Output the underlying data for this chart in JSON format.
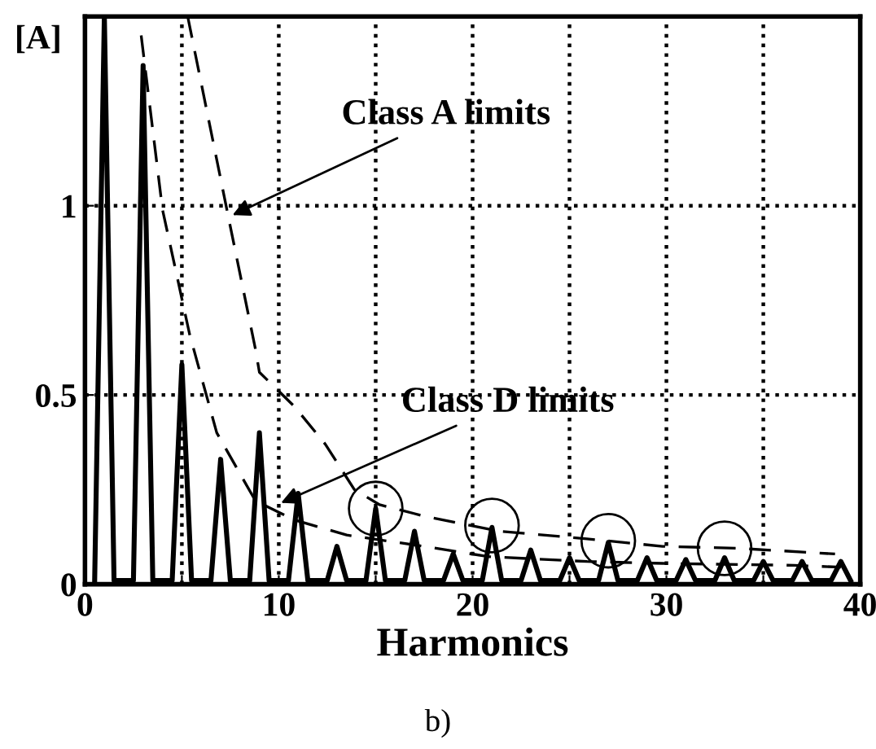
{
  "chart_data": {
    "type": "line",
    "xlabel": "Harmonics",
    "ylabel": "[A]",
    "xlim": [
      0,
      40
    ],
    "ylim": [
      0,
      1.5
    ],
    "xticks": [
      0,
      {
        "value": 5,
        "label": null
      },
      10,
      {
        "value": 15,
        "label": null
      },
      20,
      {
        "value": 25,
        "label": null
      },
      30,
      {
        "value": 35,
        "label": null
      },
      40
    ],
    "yticks": [
      0,
      0.5,
      1
    ],
    "grid": true,
    "marker": "none",
    "series": [
      {
        "color": "#000000",
        "line_style": "solid",
        "x": [
          0.5,
          1,
          1.5,
          2.5,
          3,
          3.5,
          4.5,
          5,
          5.5,
          6.5,
          7,
          7.5,
          8.5,
          9,
          9.5,
          10.5,
          11,
          11.5,
          12.5,
          13,
          13.5,
          14.5,
          15,
          15.5,
          16.5,
          17,
          17.5,
          18.5,
          19,
          19.5,
          20.5,
          21,
          21.5,
          22.5,
          23,
          23.5,
          24.5,
          25,
          25.5,
          26.5,
          27,
          27.5,
          28.5,
          29,
          29.5,
          30.5,
          31,
          31.5,
          32.5,
          33,
          33.5,
          34.5,
          35,
          35.5,
          36.5,
          37,
          37.5,
          38.5,
          39,
          39.5
        ],
        "values": [
          0.01,
          1.5,
          0.01,
          0.01,
          1.37,
          0.01,
          0.01,
          0.58,
          0.01,
          0.01,
          0.33,
          0.01,
          0.01,
          0.4,
          0.01,
          0.01,
          0.24,
          0.01,
          0.01,
          0.1,
          0.01,
          0.01,
          0.2,
          0.01,
          0.01,
          0.14,
          0.01,
          0.01,
          0.08,
          0.01,
          0.01,
          0.15,
          0.01,
          0.01,
          0.09,
          0.01,
          0.01,
          0.07,
          0.01,
          0.01,
          0.11,
          0.01,
          0.01,
          0.07,
          0.01,
          0.01,
          0.065,
          0.01,
          0.01,
          0.07,
          0.01,
          0.01,
          0.06,
          0.01,
          0.01,
          0.06,
          0.01,
          0.01,
          0.06,
          0.01
        ]
      },
      {
        "color": "#000000",
        "line_style": "dashed",
        "x": [
          5.3,
          7.4,
          8.8,
          9.0,
          10.8,
          12.4,
          13.9,
          15.2,
          17.5,
          21.4,
          25.9,
          29.8,
          33.7,
          38.7
        ],
        "values": [
          1.5,
          0.97,
          0.62,
          0.56,
          0.47,
          0.37,
          0.25,
          0.21,
          0.18,
          0.14,
          0.12,
          0.1,
          0.095,
          0.08
        ]
      },
      {
        "color": "#000000",
        "line_style": "dashed",
        "x": [
          2.9,
          4.0,
          5.4,
          6.8,
          8.8,
          10.8,
          13.5,
          17.5,
          20.8,
          25.9,
          29.8,
          36.6,
          39
        ],
        "values": [
          1.45,
          0.99,
          0.66,
          0.4,
          0.22,
          0.17,
          0.13,
          0.1,
          0.073,
          0.06,
          0.055,
          0.05,
          0.045
        ]
      },
      {
        "type": "scatter",
        "marker": "circle",
        "color": "#000000",
        "x": [
          15,
          21,
          27,
          33
        ],
        "values": [
          0.2,
          0.155,
          0.115,
          0.095
        ]
      }
    ],
    "annotations": [
      {
        "text": "Class A limits",
        "x": 7.4,
        "y": 0.97
      },
      {
        "text": "Class D limits",
        "x": 9.9,
        "y": 0.21
      },
      "b)"
    ]
  }
}
